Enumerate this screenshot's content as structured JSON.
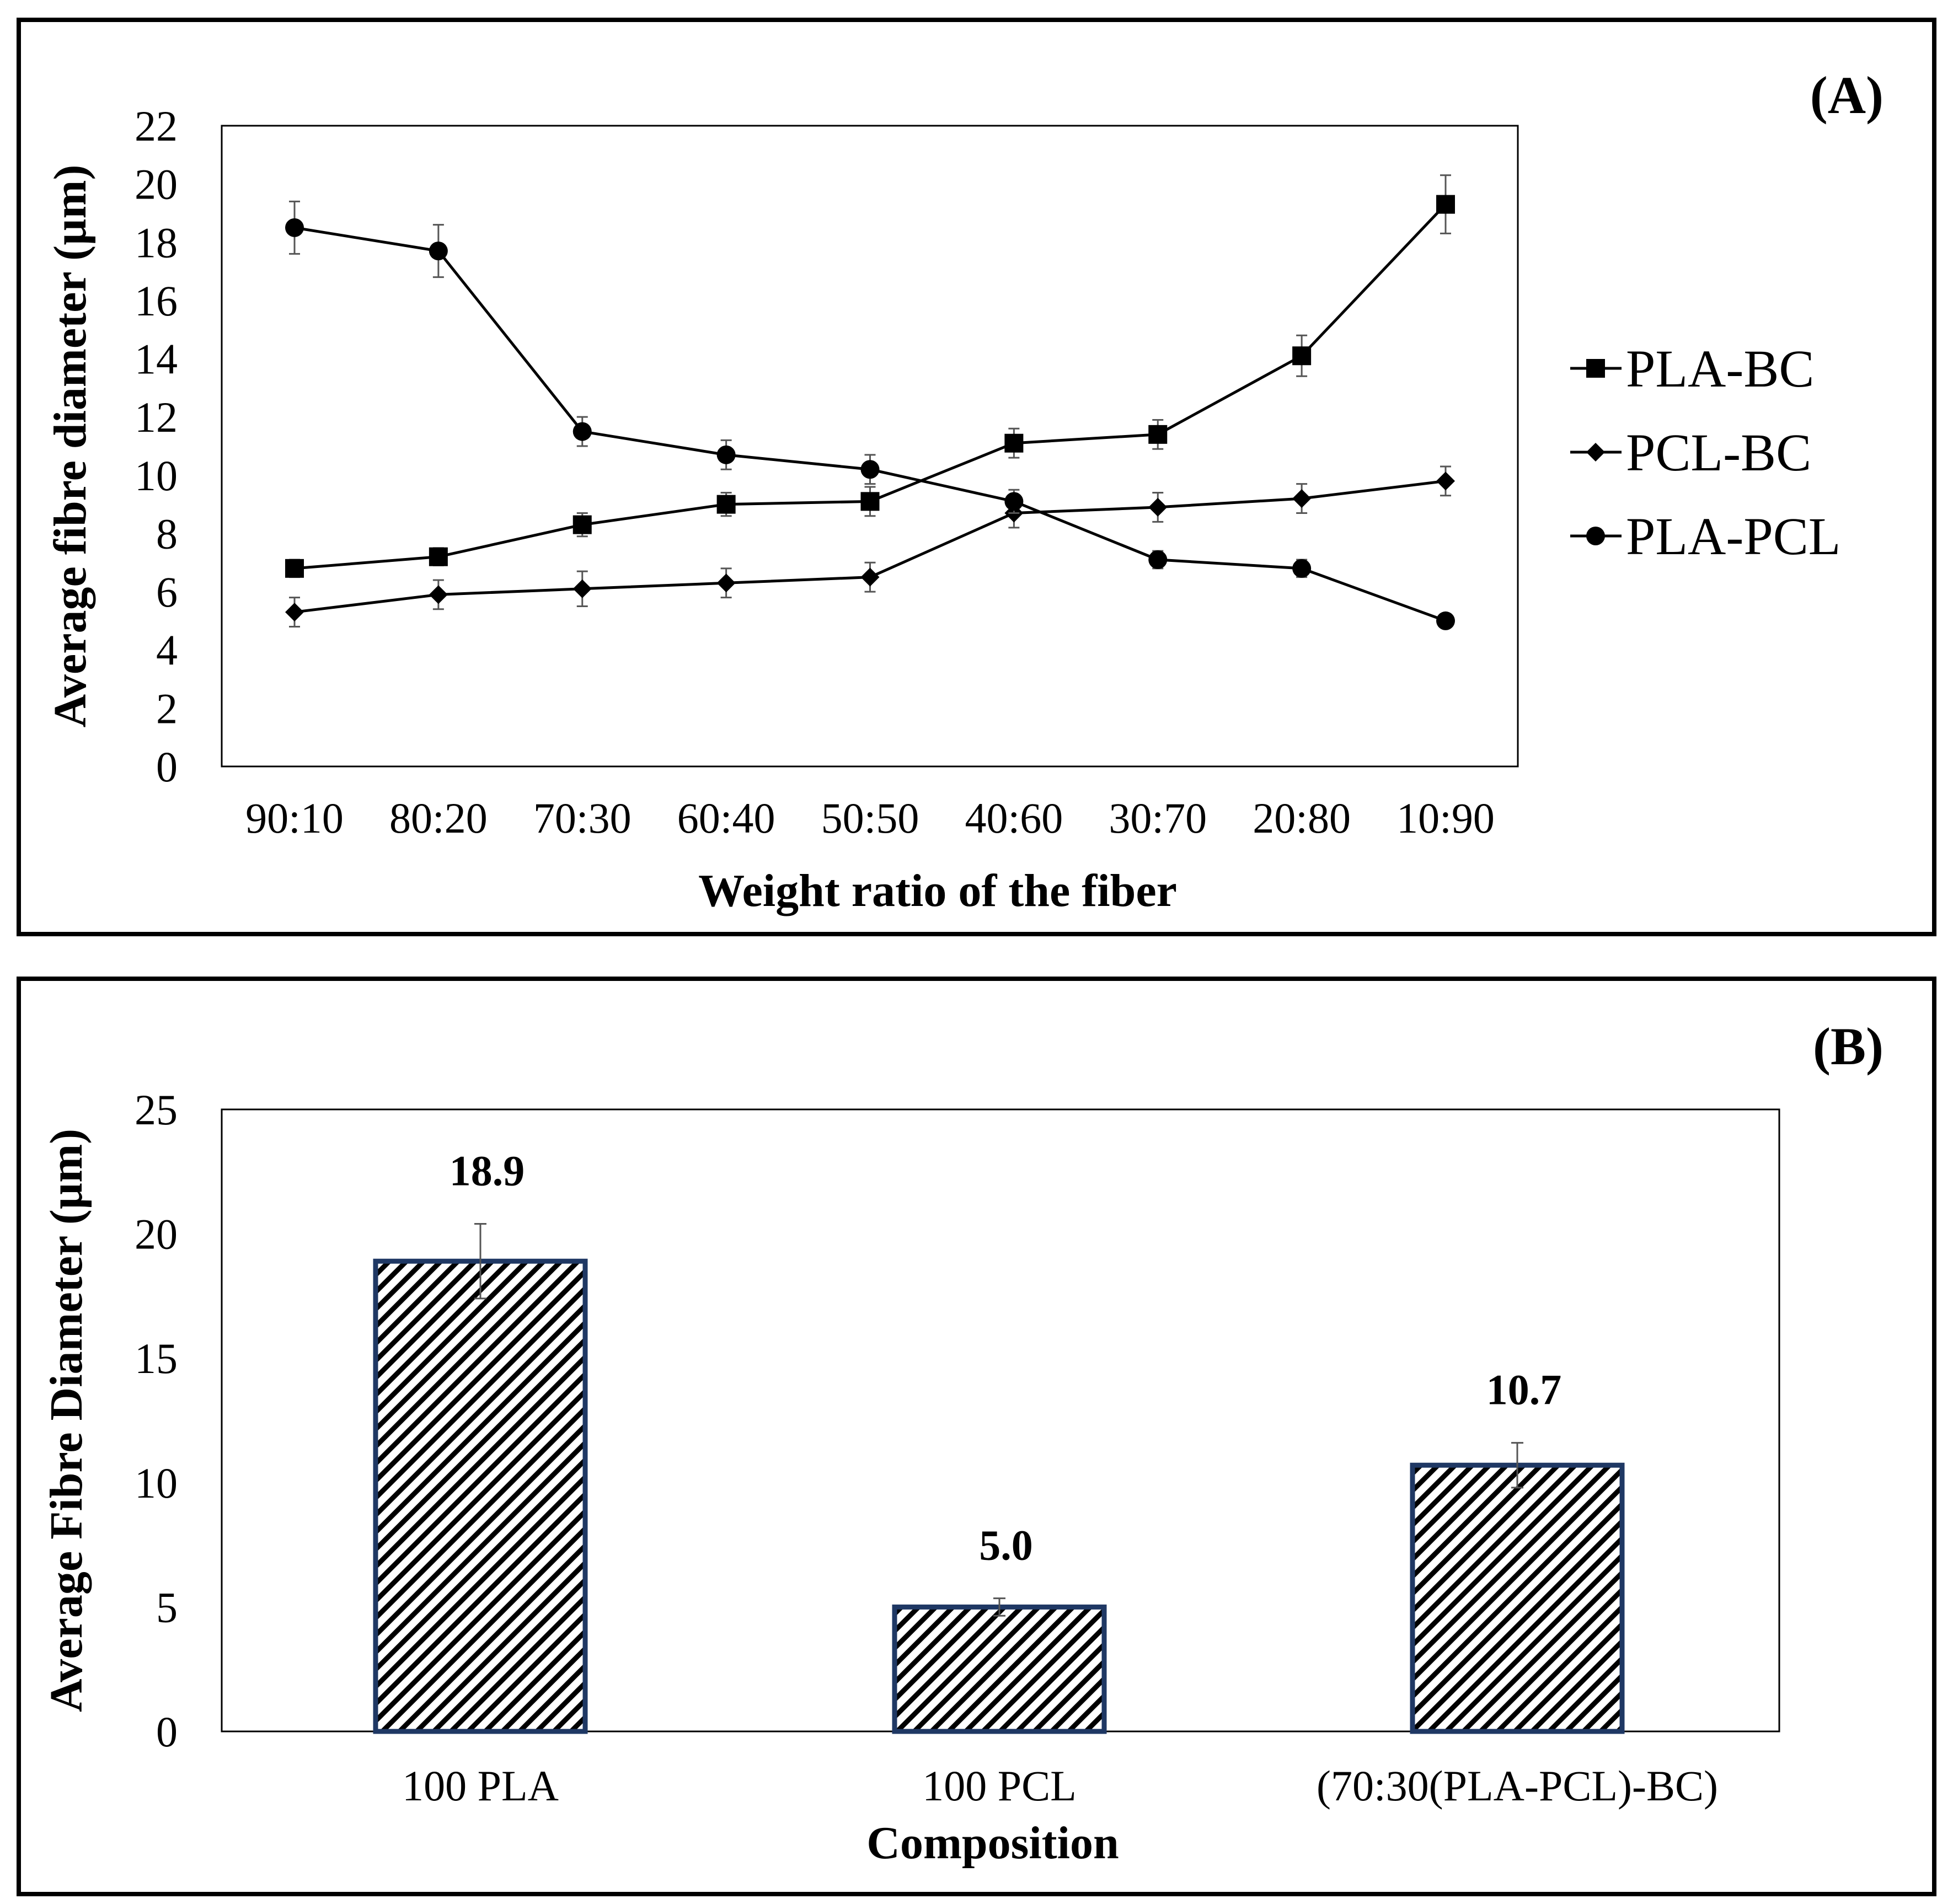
{
  "chart_data": [
    {
      "type": "line",
      "panel_label": "(A)",
      "title": "",
      "xlabel": "Weight ratio of the fiber",
      "ylabel": "Average fibre diameter (µm)",
      "categories": [
        "90:10",
        "80:20",
        "70:30",
        "60:40",
        "50:50",
        "40:60",
        "30:70",
        "20:80",
        "10:90"
      ],
      "ylim": [
        0,
        22
      ],
      "yticks": [
        "0",
        "2",
        "4",
        "6",
        "8",
        "10",
        "12",
        "14",
        "16",
        "18",
        "20",
        "22"
      ],
      "ytick_values": [
        0,
        2,
        4,
        6,
        8,
        10,
        12,
        14,
        16,
        18,
        20,
        22
      ],
      "grid": false,
      "legend_position": "right",
      "series": [
        {
          "name": "PLA-BC",
          "marker": "square",
          "values": [
            6.8,
            7.2,
            8.3,
            9.0,
            9.1,
            11.1,
            11.4,
            14.1,
            19.3
          ],
          "errors": [
            0.3,
            0.3,
            0.4,
            0.4,
            0.5,
            0.5,
            0.5,
            0.7,
            1.0
          ]
        },
        {
          "name": "PCL-BC",
          "marker": "diamond",
          "values": [
            5.3,
            5.9,
            6.1,
            6.3,
            6.5,
            8.7,
            8.9,
            9.2,
            9.8
          ],
          "errors": [
            0.5,
            0.5,
            0.6,
            0.5,
            0.5,
            0.5,
            0.5,
            0.5,
            0.5
          ]
        },
        {
          "name": "PLA-PCL",
          "marker": "circle",
          "values": [
            18.5,
            17.7,
            11.5,
            10.7,
            10.2,
            9.1,
            7.1,
            6.8,
            5.0
          ],
          "errors": [
            0.9,
            0.9,
            0.5,
            0.5,
            0.5,
            0.4,
            0.3,
            0.3,
            0.1
          ]
        }
      ]
    },
    {
      "type": "bar",
      "panel_label": "(B)",
      "title": "",
      "xlabel": "Composition",
      "ylabel": "Average Fibre Diameter (µm)",
      "categories": [
        "100 PLA",
        "100 PCL",
        "(70:30(PLA-PCL)-BC)"
      ],
      "values": [
        18.9,
        5.0,
        10.7
      ],
      "data_labels": [
        "18.9",
        "5.0",
        "10.7"
      ],
      "errors": [
        1.5,
        0.35,
        0.9
      ],
      "ylim": [
        0,
        25
      ],
      "yticks": [
        "0",
        "5",
        "10",
        "15",
        "20",
        "25"
      ],
      "ytick_values": [
        0,
        5,
        10,
        15,
        20,
        25
      ],
      "grid": false,
      "bar_fill": "diagonal-hatch",
      "bar_edge_color": "#1f3864",
      "hatch_color": "#000000"
    }
  ]
}
